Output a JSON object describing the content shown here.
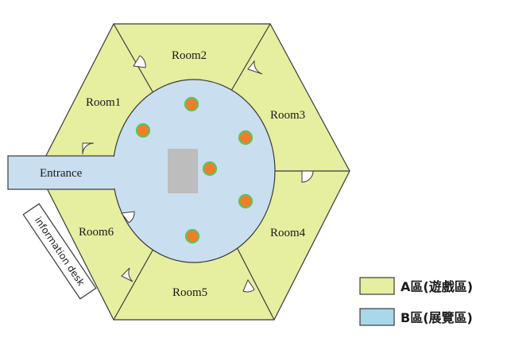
{
  "rooms": {
    "room1": "Room1",
    "room2": "Room2",
    "room3": "Room3",
    "room4": "Room4",
    "room5": "Room5",
    "room6": "Room6"
  },
  "entrance": "Entrance",
  "information_desk": "information desk",
  "legend": {
    "zone_a": "A區(遊戲區)",
    "zone_b": "B區(展覽區)"
  },
  "colors": {
    "zone_a_fill": "#e6eea0",
    "zone_b_fill": "#c9deee",
    "legend_b_fill": "#a8d8ea",
    "outline": "#3a3a3a",
    "exhibit_marker": "#f47c28",
    "exhibit_marker_ring": "#5cc35c",
    "center_block": "#bdbdbd"
  }
}
